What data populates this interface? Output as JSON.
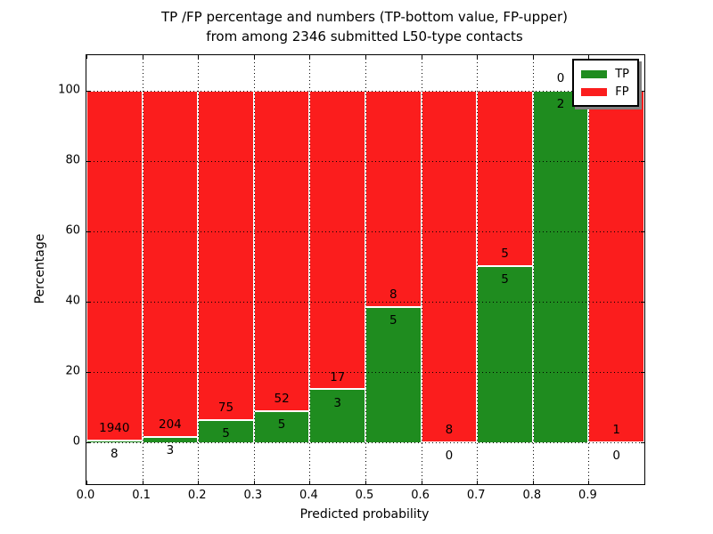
{
  "title": {
    "line1": "TP /FP percentage and numbers (TP-bottom value, FP-upper)",
    "line2": "from among 2346 submitted L50-type contacts"
  },
  "axes": {
    "xlabel": "Predicted probability",
    "ylabel": "Percentage"
  },
  "chart_data": {
    "type": "bar",
    "stacked_percentage": true,
    "title": "TP /FP percentage and numbers (TP-bottom value, FP-upper) from among 2346 submitted L50-type contacts",
    "xlabel": "Predicted probability",
    "ylabel": "Percentage",
    "total_contacts": 2346,
    "x_tick_labels": [
      "0.0",
      "0.1",
      "0.2",
      "0.3",
      "0.4",
      "0.5",
      "0.6",
      "0.7",
      "0.8",
      "0.9"
    ],
    "y_tick_values": [
      0,
      20,
      40,
      60,
      80,
      100
    ],
    "xlim": [
      0.0,
      1.0
    ],
    "ylim": [
      -12,
      110
    ],
    "grid": "dotted",
    "legend": {
      "position": "upper right",
      "entries": [
        {
          "label": "TP",
          "color": "#1f8c1f"
        },
        {
          "label": "FP",
          "color": "#fb1d1d"
        }
      ]
    },
    "bins": [
      {
        "range": [
          0.0,
          0.1
        ],
        "tp": 8,
        "fp": 1940,
        "tp_pct": 0.41
      },
      {
        "range": [
          0.1,
          0.2
        ],
        "tp": 3,
        "fp": 204,
        "tp_pct": 1.45
      },
      {
        "range": [
          0.2,
          0.3
        ],
        "tp": 5,
        "fp": 75,
        "tp_pct": 6.25
      },
      {
        "range": [
          0.3,
          0.4
        ],
        "tp": 5,
        "fp": 52,
        "tp_pct": 8.77
      },
      {
        "range": [
          0.4,
          0.5
        ],
        "tp": 3,
        "fp": 17,
        "tp_pct": 15.0
      },
      {
        "range": [
          0.5,
          0.6
        ],
        "tp": 5,
        "fp": 8,
        "tp_pct": 38.46
      },
      {
        "range": [
          0.6,
          0.7
        ],
        "tp": 0,
        "fp": 8,
        "tp_pct": 0.0
      },
      {
        "range": [
          0.7,
          0.8
        ],
        "tp": 5,
        "fp": 5,
        "tp_pct": 50.0
      },
      {
        "range": [
          0.8,
          0.9
        ],
        "tp": 2,
        "fp": 0,
        "tp_pct": 100.0
      },
      {
        "range": [
          0.9,
          1.0
        ],
        "tp": 0,
        "fp": 1,
        "tp_pct": 0.0
      }
    ]
  },
  "colors": {
    "tp_green": "#1f8c1f",
    "fp_red": "#fb1d1d",
    "grid": "#000000",
    "text": "#000000",
    "background": "#ffffff",
    "legend_shadow": "#808080"
  }
}
